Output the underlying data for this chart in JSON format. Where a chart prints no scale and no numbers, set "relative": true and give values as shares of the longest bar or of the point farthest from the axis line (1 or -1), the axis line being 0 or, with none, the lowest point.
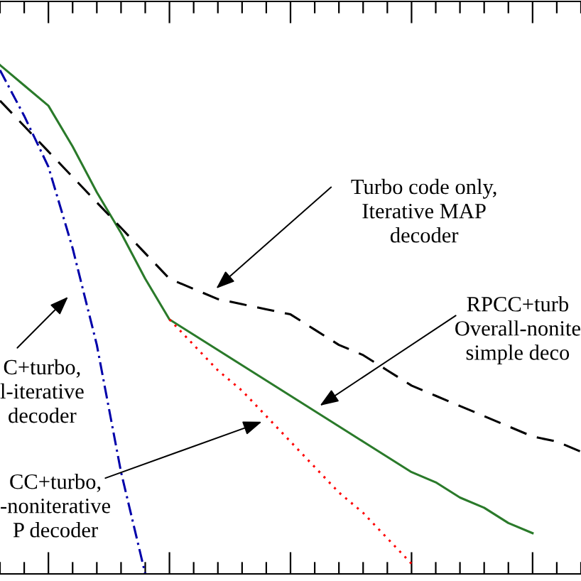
{
  "chart_data": {
    "type": "line",
    "relative": true,
    "legend": false,
    "grid": false,
    "marker": "none",
    "categories": [
      null,
      null,
      null,
      null,
      null,
      null,
      null,
      null,
      null,
      null,
      null,
      null,
      null,
      null,
      null,
      null,
      null,
      null,
      null,
      null,
      null,
      null,
      null,
      null,
      null
    ],
    "series": [
      {
        "color": "#2a7a2a",
        "line_style": "solid",
        "values": [
          1.0,
          0.96,
          0.92,
          0.84,
          0.75,
          0.67,
          0.58,
          0.5,
          0.47,
          0.44,
          0.41,
          0.38,
          0.35,
          0.32,
          0.29,
          0.26,
          0.23,
          0.2,
          0.18,
          0.15,
          0.13,
          0.1,
          0.08,
          null,
          null
        ]
      },
      {
        "color": "#0000aa",
        "line_style": "dashdot",
        "values": [
          0.99,
          0.9,
          0.8,
          0.64,
          0.45,
          0.2,
          0.0,
          null,
          null,
          null,
          null,
          null,
          null,
          null,
          null,
          null,
          null,
          null,
          null,
          null,
          null,
          null,
          null,
          null,
          null
        ]
      },
      {
        "color": "#000000",
        "line_style": "dashed",
        "values": [
          0.93,
          0.88,
          0.83,
          0.78,
          0.73,
          0.68,
          0.63,
          0.58,
          0.56,
          0.54,
          0.53,
          0.52,
          0.51,
          0.48,
          0.45,
          0.43,
          0.4,
          0.37,
          0.35,
          0.33,
          0.31,
          0.29,
          0.27,
          0.26,
          0.24
        ]
      },
      {
        "color": "#ff0000",
        "line_style": "dotted",
        "values": [
          null,
          null,
          null,
          null,
          null,
          null,
          null,
          0.5,
          0.45,
          0.4,
          0.36,
          0.31,
          0.26,
          0.21,
          0.16,
          0.12,
          0.07,
          0.02,
          null,
          null,
          null,
          null,
          null,
          null,
          null
        ]
      }
    ],
    "annotations": [
      "Turbo code only,\nIterative MAP\ndecoder",
      "RPCC+turb\nOverall-nonite\nsimple deco",
      "C+turbo,\nl-iterative\ndecoder",
      "CC+turbo,\n-noniterative\nP decoder"
    ]
  }
}
